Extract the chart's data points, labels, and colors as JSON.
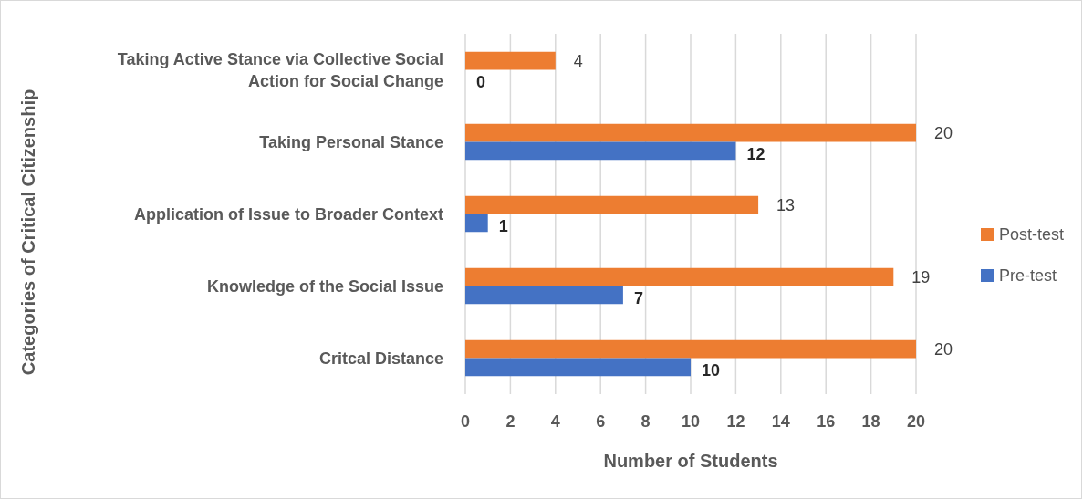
{
  "chart_data": {
    "type": "bar",
    "orientation": "horizontal",
    "xlabel": "Number of Students",
    "ylabel": "Categories of Critical Citizenship",
    "categories": [
      "Taking Active Stance via Collective Social Action for Social Change",
      "Taking Personal Stance",
      "Application of Issue to Broader Context",
      "Knowledge of the Social Issue",
      "Critcal Distance"
    ],
    "series": [
      {
        "name": "Post-test",
        "color": "#ed7d31",
        "values": [
          4,
          20,
          13,
          19,
          20
        ]
      },
      {
        "name": "Pre-test",
        "color": "#4472c4",
        "values": [
          0,
          12,
          1,
          7,
          10
        ]
      }
    ],
    "xlim": [
      0,
      20
    ],
    "xticks": [
      0,
      2,
      4,
      6,
      8,
      10,
      12,
      14,
      16,
      18,
      20
    ],
    "grid": "x",
    "legend": "right",
    "data_labels": true
  }
}
